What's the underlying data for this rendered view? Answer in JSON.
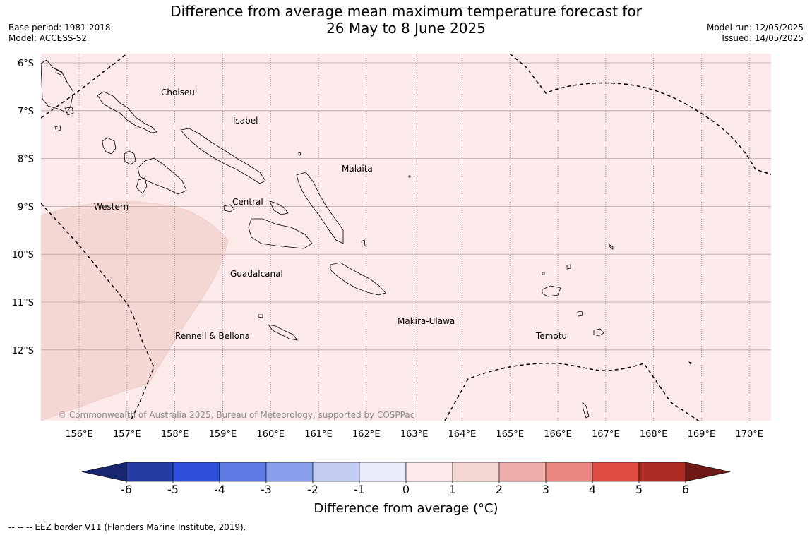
{
  "header": {
    "title_line1": "Difference from average mean maximum temperature forecast for",
    "title_line2": "26 May to 8 June 2025",
    "base_period": "Base period: 1981-2018",
    "model": "Model: ACCESS-S2",
    "model_run": "Model run: 12/05/2025",
    "issued": "Issued: 14/05/2025"
  },
  "map": {
    "lat_labels": [
      "6°S",
      "7°S",
      "8°S",
      "9°S",
      "10°S",
      "11°S",
      "12°S"
    ],
    "lon_labels": [
      "156°E",
      "157°E",
      "158°E",
      "159°E",
      "160°E",
      "161°E",
      "162°E",
      "163°E",
      "164°E",
      "165°E",
      "166°E",
      "167°E",
      "168°E",
      "169°E",
      "170°E"
    ],
    "provinces": [
      "Choiseul",
      "Isabel",
      "Malaita",
      "Western",
      "Central",
      "Guadalcanal",
      "Makira-Ulawa",
      "Rennell & Bellona",
      "Temotu"
    ],
    "copyright": "© Commonwealth of Australia 2025, Bureau of Meteorology, supported by COSPPac",
    "colors": {
      "background_class": "#fbeae9",
      "anomaly_1_2": "#f4d6d3",
      "border": "#000000"
    }
  },
  "colorbar": {
    "ticks": [
      "-6",
      "-5",
      "-4",
      "-3",
      "-2",
      "-1",
      "0",
      "1",
      "2",
      "3",
      "4",
      "5",
      "6"
    ],
    "colors": [
      "#233da5",
      "#2f4fdc",
      "#5d79e3",
      "#8a9feb",
      "#c4cdf4",
      "#e8ecfb",
      "#fbeae9",
      "#f4d6d3",
      "#eeadaa",
      "#e8877f",
      "#de4c43",
      "#ae2a24"
    ],
    "under_color": "#17266e",
    "over_color": "#6d1a16",
    "label": "Difference from average (°C)"
  },
  "legend_note": "--  --  -- EEZ border V11 (Flanders Marine Institute, 2019)."
}
